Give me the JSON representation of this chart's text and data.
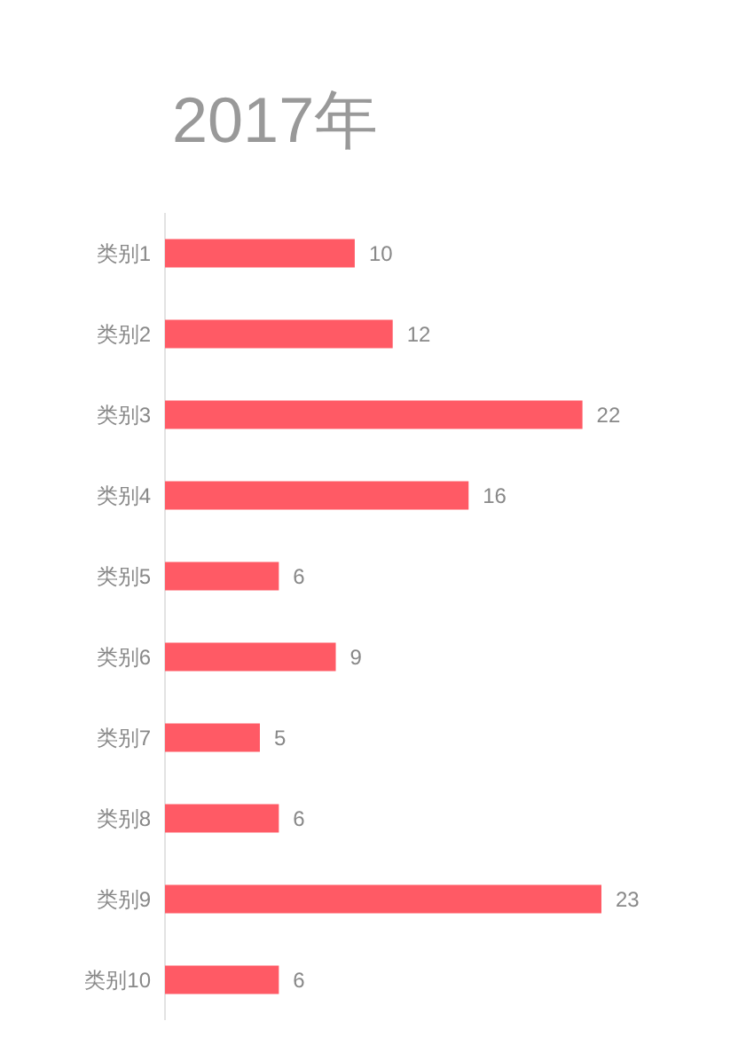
{
  "chart_data": {
    "type": "bar",
    "orientation": "horizontal",
    "title": "2017年",
    "categories": [
      "类别1",
      "类别2",
      "类别3",
      "类别4",
      "类别5",
      "类别6",
      "类别7",
      "类别8",
      "类别9",
      "类别10"
    ],
    "values": [
      10,
      12,
      22,
      16,
      6,
      9,
      5,
      6,
      23,
      6
    ],
    "color": "#ff5a65",
    "data_labels": true
  }
}
